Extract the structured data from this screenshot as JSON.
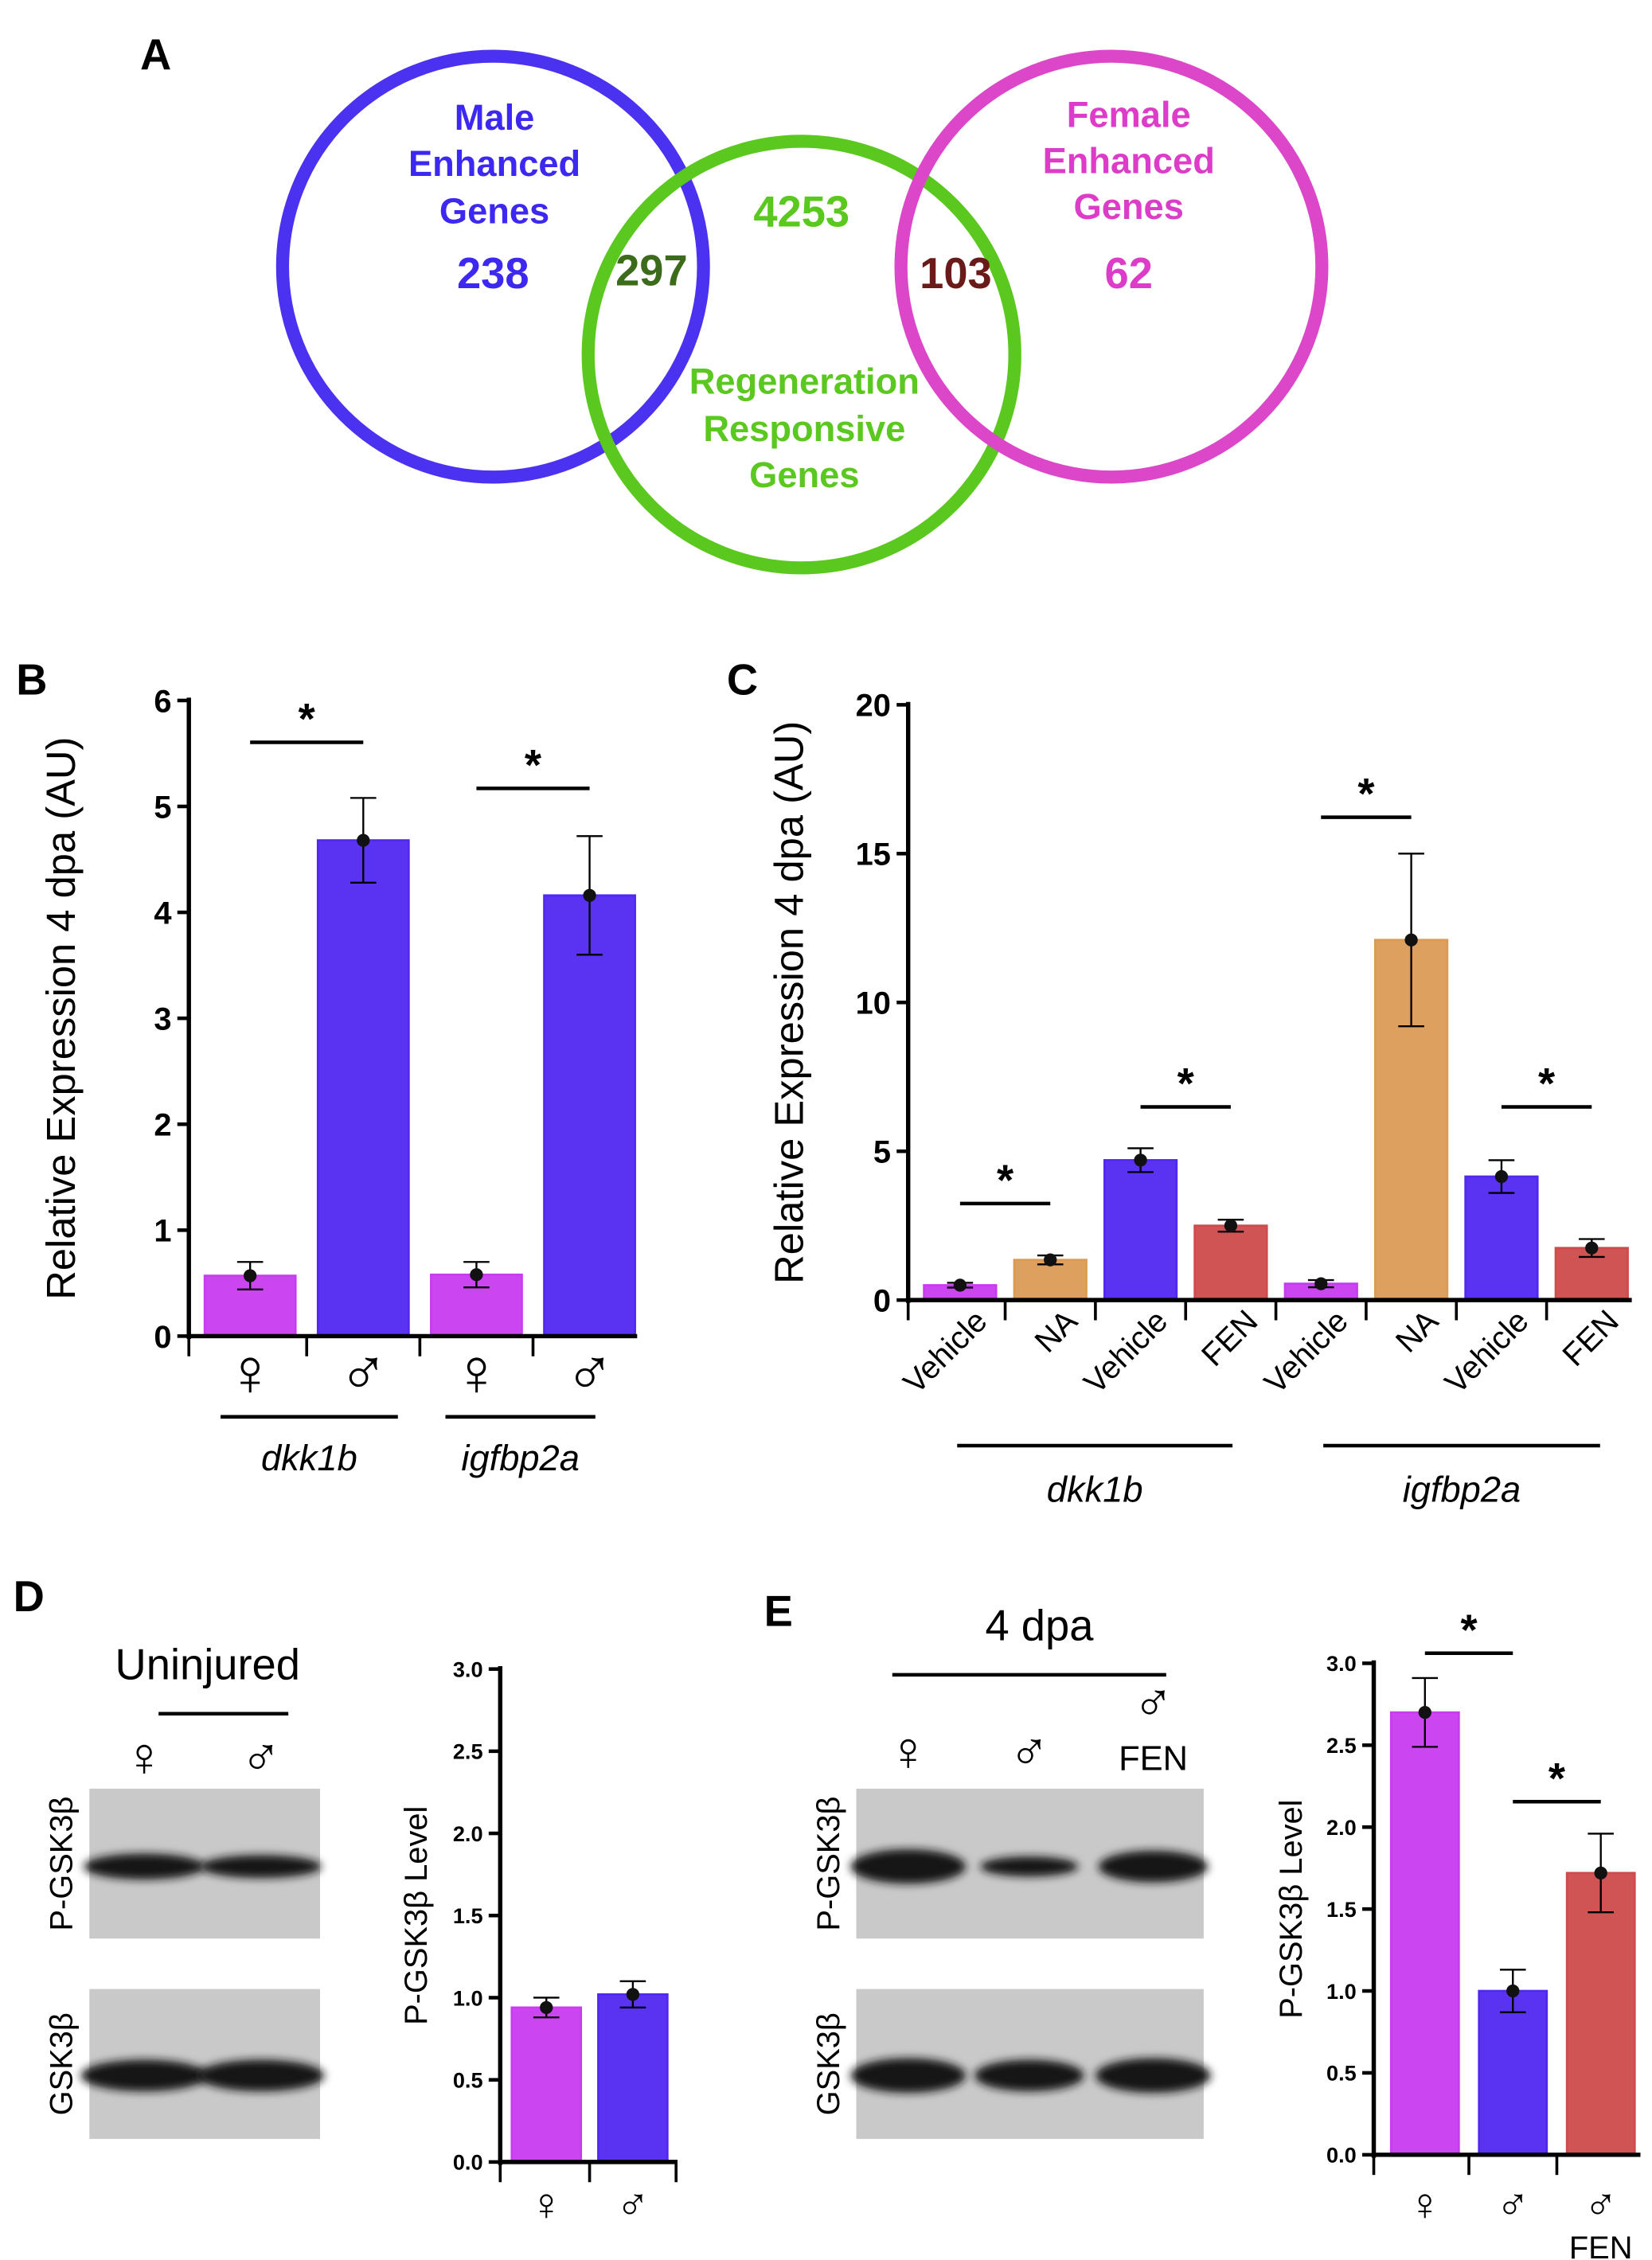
{
  "panels": {
    "A": "A",
    "B": "B",
    "C": "C",
    "D": "D",
    "E": "E"
  },
  "venn": {
    "colors": {
      "male": "#4b32f0",
      "regen": "#5ac81e",
      "female": "#dc46c8",
      "overlap_male": "#3d6b1c",
      "overlap_female": "#6b1a1a"
    },
    "male": {
      "label": [
        "Male",
        "Enhanced",
        "Genes"
      ],
      "count": "238"
    },
    "regen": {
      "label": [
        "Regeneration",
        "Responsive",
        "Genes"
      ],
      "count": "4253"
    },
    "female": {
      "label": [
        "Female",
        "Enhanced",
        "Genes"
      ],
      "count": "62"
    },
    "male_regen_overlap": "297",
    "female_regen_overlap": "103"
  },
  "colors": {
    "female": "#c83cf0",
    "male": "#5028f0",
    "NA": "#dc9b55",
    "FEN": "#cd4b4b"
  },
  "symbols": {
    "female": "♀",
    "male": "♂"
  },
  "chart_data": [
    {
      "panel": "B",
      "type": "bar",
      "ylabel": "Relative Expression 4 dpa (AU)",
      "ylim": [
        0,
        6
      ],
      "yticks": [
        "0",
        "1",
        "2",
        "3",
        "4",
        "5",
        "6"
      ],
      "categories": [
        "♀",
        "♂",
        "♀",
        "♂"
      ],
      "groups": [
        "dkk1b",
        "igfbp2a"
      ],
      "values": [
        0.57,
        4.68,
        0.58,
        4.16
      ],
      "errors": [
        0.13,
        0.4,
        0.12,
        0.56
      ],
      "bar_colors": [
        "female",
        "male",
        "female",
        "male"
      ],
      "significance": [
        {
          "pair": [
            0,
            1
          ],
          "label": "*"
        },
        {
          "pair": [
            2,
            3
          ],
          "label": "*"
        }
      ]
    },
    {
      "panel": "C",
      "type": "bar",
      "ylabel": "Relative Expression 4 dpa (AU)",
      "ylim": [
        0,
        20
      ],
      "yticks": [
        "0",
        "5",
        "10",
        "15",
        "20"
      ],
      "categories": [
        "Vehicle",
        "NA",
        "Vehicle",
        "FEN",
        "Vehicle",
        "NA",
        "Vehicle",
        "FEN"
      ],
      "groups": [
        "dkk1b",
        "igfbp2a"
      ],
      "values": [
        0.5,
        1.35,
        4.7,
        2.5,
        0.55,
        12.1,
        4.15,
        1.75
      ],
      "errors": [
        0.08,
        0.15,
        0.4,
        0.2,
        0.12,
        2.9,
        0.55,
        0.3
      ],
      "bar_colors": [
        "female",
        "NA",
        "male",
        "FEN",
        "female",
        "NA",
        "male",
        "FEN"
      ],
      "significance": [
        {
          "pair": [
            0,
            1
          ],
          "label": "*"
        },
        {
          "pair": [
            2,
            3
          ],
          "label": "*"
        },
        {
          "pair": [
            4,
            5
          ],
          "label": "*"
        },
        {
          "pair": [
            6,
            7
          ],
          "label": "*"
        }
      ]
    },
    {
      "panel": "D",
      "type": "bar",
      "ylabel": "P-GSK3β Level",
      "ylim": [
        0,
        3
      ],
      "yticks": [
        "0.0",
        "0.5",
        "1.0",
        "1.5",
        "2.0",
        "2.5",
        "3.0"
      ],
      "categories": [
        "♀",
        "♂"
      ],
      "values": [
        0.94,
        1.02
      ],
      "errors": [
        0.06,
        0.08
      ],
      "bar_colors": [
        "female",
        "male"
      ],
      "significance": []
    },
    {
      "panel": "E",
      "type": "bar",
      "ylabel": "P-GSK3β Level",
      "ylim": [
        0,
        3
      ],
      "yticks": [
        "0.0",
        "0.5",
        "1.0",
        "1.5",
        "2.0",
        "2.5",
        "3.0"
      ],
      "categories": [
        "♀",
        "♂",
        "♂ FEN"
      ],
      "values": [
        2.7,
        1.0,
        1.72
      ],
      "errors": [
        0.21,
        0.13,
        0.24
      ],
      "bar_colors": [
        "female",
        "male",
        "FEN"
      ],
      "significance": [
        {
          "pair": [
            0,
            1
          ],
          "label": "*"
        },
        {
          "pair": [
            1,
            2
          ],
          "label": "*"
        }
      ]
    }
  ],
  "blots": {
    "D": {
      "condition": "Uninjured",
      "lanes": [
        "♀",
        "♂"
      ],
      "rows": [
        "P-GSK3β",
        "GSK3β"
      ]
    },
    "E": {
      "condition": "4 dpa",
      "lanes": [
        "♀",
        "♂",
        "♂"
      ],
      "lane_sub": "FEN",
      "rows": [
        "P-GSK3β",
        "GSK3β"
      ]
    }
  }
}
